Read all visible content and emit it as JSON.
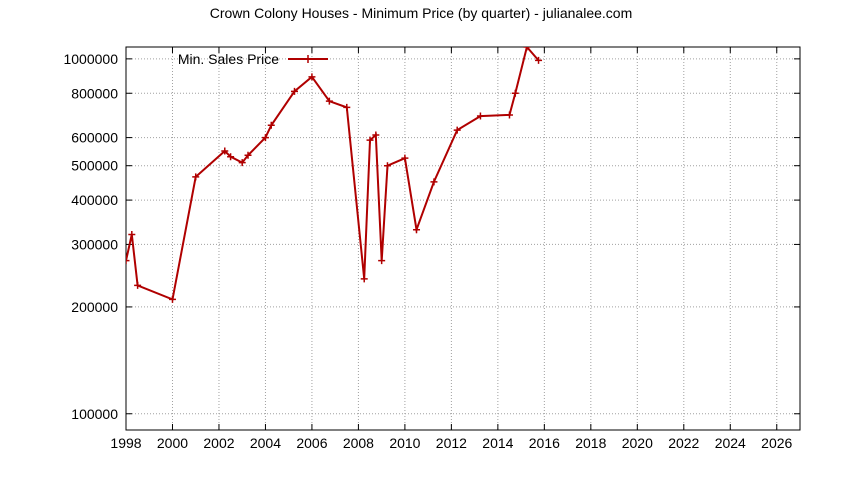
{
  "chart_data": {
    "type": "line",
    "title": "Crown Colony Houses - Minimum Price (by quarter) - julianalee.com",
    "xlabel": "",
    "ylabel": "",
    "xlim": [
      1998,
      2027
    ],
    "ylim": [
      90000,
      1080000
    ],
    "yscale": "log",
    "grid": true,
    "legend_position": "top-left",
    "x_ticks": [
      1998,
      2000,
      2002,
      2004,
      2006,
      2008,
      2010,
      2012,
      2014,
      2016,
      2018,
      2020,
      2022,
      2024,
      2026
    ],
    "y_ticks": [
      {
        "value": 100000,
        "label": "100000"
      },
      {
        "value": 200000,
        "label": "200000"
      },
      {
        "value": 300000,
        "label": "300000"
      },
      {
        "value": 400000,
        "label": "400000"
      },
      {
        "value": 500000,
        "label": "500000"
      },
      {
        "value": 600000,
        "label": "600000"
      },
      {
        "value": 800000,
        "label": "800000"
      },
      {
        "value": 1000000,
        "label": "1000000"
      }
    ],
    "series": [
      {
        "name": "Min. Sales Price",
        "color": "#b00000",
        "x": [
          1998.0,
          1998.25,
          1998.5,
          2000.0,
          2001.0,
          2002.25,
          2002.5,
          2003.0,
          2003.25,
          2004.0,
          2004.25,
          2005.25,
          2006.0,
          2006.75,
          2007.5,
          2008.25,
          2008.5,
          2008.75,
          2009.0,
          2009.25,
          2010.0,
          2010.5,
          2011.25,
          2012.25,
          2013.25,
          2014.5,
          2014.75,
          2015.25,
          2015.75
        ],
        "y": [
          270000,
          320000,
          230000,
          210000,
          465000,
          550000,
          530000,
          510000,
          535000,
          600000,
          650000,
          810000,
          890000,
          760000,
          730000,
          240000,
          590000,
          610000,
          270000,
          500000,
          525000,
          330000,
          450000,
          630000,
          690000,
          695000,
          800000,
          1080000,
          990000
        ]
      }
    ]
  }
}
